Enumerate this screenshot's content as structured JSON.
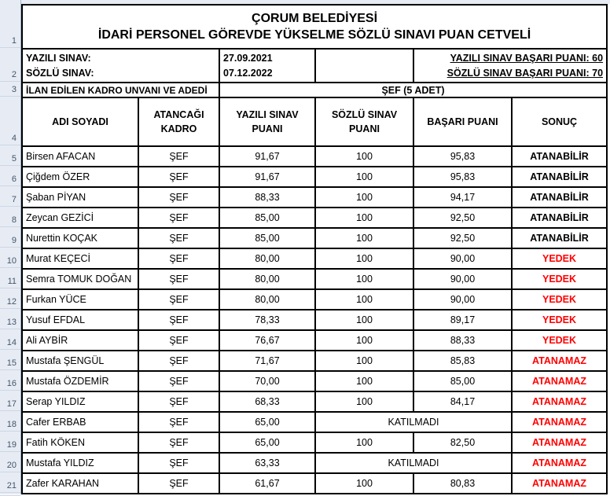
{
  "colors": {
    "result_red": "#FF0000",
    "result_black": "#000000",
    "gutter_bg": "#e7ecf4",
    "gutter_text": "#44546A",
    "grid_border": "#000000"
  },
  "gutter": {
    "row_numbers": [
      "1",
      "2",
      "3",
      "4",
      "5",
      "6",
      "7",
      "8",
      "9",
      "10",
      "11",
      "12",
      "13",
      "14",
      "15",
      "16",
      "17",
      "18",
      "19",
      "20",
      "21",
      ""
    ]
  },
  "title": {
    "line1": "ÇORUM BELEDİYESİ",
    "line2": "İDARİ PERSONEL GÖREVDE YÜKSELME SÖZLÜ SINAVI PUAN CETVELİ"
  },
  "exam_info": {
    "yazili_label": "YAZILI SINAV:",
    "yazili_date": "27.09.2021",
    "sozlu_label": "SÖZLÜ SINAV:",
    "sozlu_date": "07.12.2022",
    "yazili_pass": "YAZILI SINAV BAŞARI PUANI: 60",
    "sozlu_pass": "SÖZLÜ SINAV BAŞARI PUANI: 70"
  },
  "position_info": {
    "label": "İLAN EDİLEN KADRO UNVANI VE ADEDİ",
    "value": "ŞEF (5 ADET)"
  },
  "table": {
    "headers": {
      "name": "ADI SOYADI",
      "kadro": "ATANCAĞI KADRO",
      "yazili": "YAZILI SINAV PUANI",
      "sozlu": "SÖZLÜ SINAV PUANI",
      "basari": "BAŞARI PUANI",
      "sonuc": "SONUÇ"
    },
    "rows": [
      {
        "name": "Birsen AFACAN",
        "kadro": "ŞEF",
        "yazili": "91,67",
        "sozlu": "100",
        "basari": "95,83",
        "sonuc": "ATANABİLİR",
        "red": false,
        "katilmadi": false
      },
      {
        "name": "Çiğdem ÖZER",
        "kadro": "ŞEF",
        "yazili": "91,67",
        "sozlu": "100",
        "basari": "95,83",
        "sonuc": "ATANABİLİR",
        "red": false,
        "katilmadi": false
      },
      {
        "name": "Şaban PİYAN",
        "kadro": "ŞEF",
        "yazili": "88,33",
        "sozlu": "100",
        "basari": "94,17",
        "sonuc": "ATANABİLİR",
        "red": false,
        "katilmadi": false
      },
      {
        "name": "Zeycan GEZİCİ",
        "kadro": "ŞEF",
        "yazili": "85,00",
        "sozlu": "100",
        "basari": "92,50",
        "sonuc": "ATANABİLİR",
        "red": false,
        "katilmadi": false
      },
      {
        "name": "Nurettin KOÇAK",
        "kadro": "ŞEF",
        "yazili": "85,00",
        "sozlu": "100",
        "basari": "92,50",
        "sonuc": "ATANABİLİR",
        "red": false,
        "katilmadi": false
      },
      {
        "name": "Murat KEÇECİ",
        "kadro": "ŞEF",
        "yazili": "80,00",
        "sozlu": "100",
        "basari": "90,00",
        "sonuc": "YEDEK",
        "red": true,
        "katilmadi": false
      },
      {
        "name": "Semra TOMUK DOĞAN",
        "kadro": "ŞEF",
        "yazili": "80,00",
        "sozlu": "100",
        "basari": "90,00",
        "sonuc": "YEDEK",
        "red": true,
        "katilmadi": false
      },
      {
        "name": "Furkan YÜCE",
        "kadro": "ŞEF",
        "yazili": "80,00",
        "sozlu": "100",
        "basari": "90,00",
        "sonuc": "YEDEK",
        "red": true,
        "katilmadi": false
      },
      {
        "name": "Yusuf EFDAL",
        "kadro": "ŞEF",
        "yazili": "78,33",
        "sozlu": "100",
        "basari": "89,17",
        "sonuc": "YEDEK",
        "red": true,
        "katilmadi": false
      },
      {
        "name": "Ali AYBİR",
        "kadro": "ŞEF",
        "yazili": "76,67",
        "sozlu": "100",
        "basari": "88,33",
        "sonuc": "YEDEK",
        "red": true,
        "katilmadi": false
      },
      {
        "name": "Mustafa ŞENGÜL",
        "kadro": "ŞEF",
        "yazili": "71,67",
        "sozlu": "100",
        "basari": "85,83",
        "sonuc": "ATANAMAZ",
        "red": true,
        "katilmadi": false
      },
      {
        "name": "Mustafa ÖZDEMİR",
        "kadro": "ŞEF",
        "yazili": "70,00",
        "sozlu": "100",
        "basari": "85,00",
        "sonuc": "ATANAMAZ",
        "red": true,
        "katilmadi": false
      },
      {
        "name": "Serap YILDIZ",
        "kadro": "ŞEF",
        "yazili": "68,33",
        "sozlu": "100",
        "basari": "84,17",
        "sonuc": "ATANAMAZ",
        "red": true,
        "katilmadi": false
      },
      {
        "name": "Cafer ERBAB",
        "kadro": "ŞEF",
        "yazili": "65,00",
        "sozlu": "",
        "basari": "",
        "sonuc": "ATANAMAZ",
        "red": true,
        "katilmadi": true,
        "katilmadi_text": "KATILMADI"
      },
      {
        "name": "Fatih KÖKEN",
        "kadro": "ŞEF",
        "yazili": "65,00",
        "sozlu": "100",
        "basari": "82,50",
        "sonuc": "ATANAMAZ",
        "red": true,
        "katilmadi": false
      },
      {
        "name": "Mustafa YILDIZ",
        "kadro": "ŞEF",
        "yazili": "63,33",
        "sozlu": "",
        "basari": "",
        "sonuc": "ATANAMAZ",
        "red": true,
        "katilmadi": true,
        "katilmadi_text": "KATILMADI"
      },
      {
        "name": "Zafer KARAHAN",
        "kadro": "ŞEF",
        "yazili": "61,67",
        "sozlu": "100",
        "basari": "80,83",
        "sonuc": "ATANAMAZ",
        "red": true,
        "katilmadi": false
      }
    ]
  }
}
